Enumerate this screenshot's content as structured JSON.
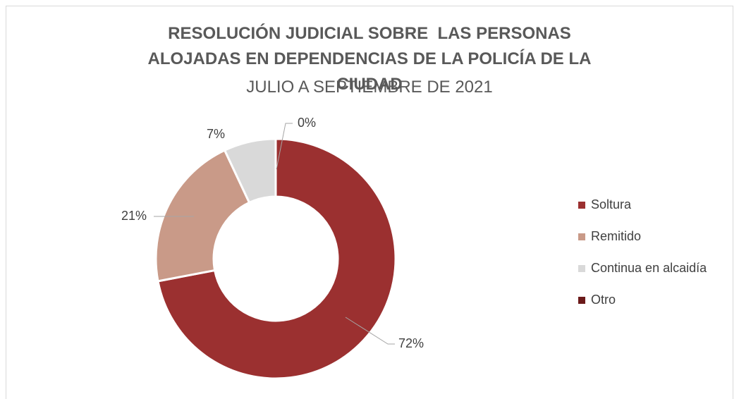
{
  "chart_data": {
    "type": "donut",
    "title": "RESOLUCIÓN JUDICIAL SOBRE  LAS PERSONAS ALOJADAS EN DEPENDENCIAS DE LA POLICÍA DE LA CIUDAD",
    "subtitle": "JULIO A SEPTIEMBRE DE 2021",
    "categories": [
      "Soltura",
      "Remitido",
      "Continua en alcaidía",
      "Otro"
    ],
    "values": [
      72,
      21,
      7,
      0
    ],
    "value_labels": [
      "72%",
      "21%",
      "7%",
      "0%"
    ],
    "colors": [
      "#9b3030",
      "#c99a88",
      "#d9d9d9",
      "#6b1a1a"
    ],
    "legend": "right"
  }
}
